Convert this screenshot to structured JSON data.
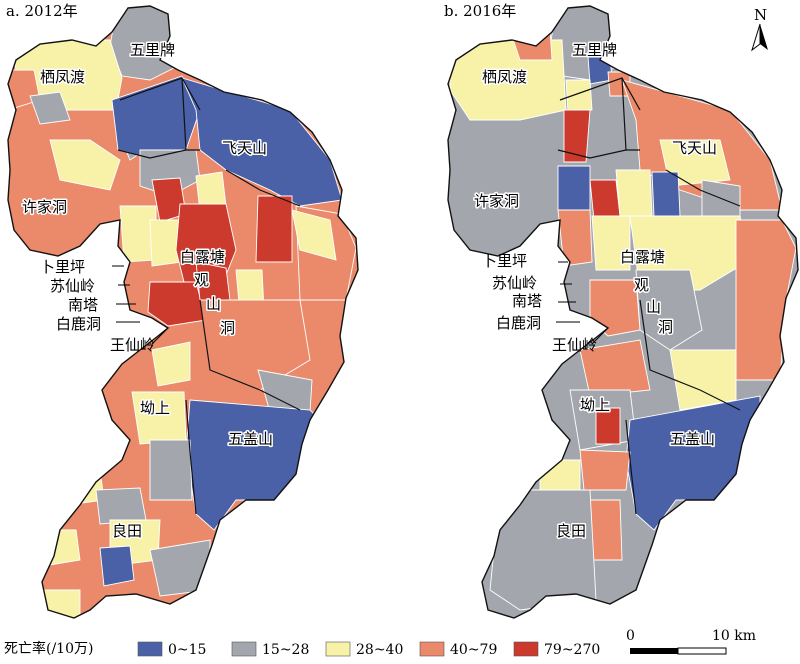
{
  "colors": {
    "class_0": "#4a61a8",
    "class_1": "#a3a7ad",
    "class_2": "#f7f2a8",
    "class_3": "#ea8a6a",
    "class_4": "#cb3a2c",
    "outline": "#111111",
    "background": "#ffffff"
  },
  "panels": [
    {
      "title": "a. 2012年",
      "labels": {
        "wulipai": "五里牌",
        "qifengdu": "栖凤渡",
        "feitianshan": "飞天山",
        "xujiadong": "许家洞",
        "bailutang": "白露塘",
        "bulieping": "卜里坪",
        "suxianling": "苏仙岭",
        "nanta": "南塔",
        "bailudong": "白鹿洞",
        "wangxianling": "王仙岭",
        "guanshandong_1": "观",
        "guanshandong_2": "山",
        "guanshandong_3": "洞",
        "aoshang": "坳上",
        "wugaishan": "五盖山",
        "liangtian": "良田"
      }
    },
    {
      "title": "b. 2016年",
      "labels": {
        "wulipai": "五里牌",
        "qifengdu": "栖凤渡",
        "feitianshan": "飞天山",
        "xujiadong": "许家洞",
        "bailutang": "白露塘",
        "bulieping": "卜里坪",
        "suxianling": "苏仙岭",
        "nanta": "南塔",
        "bailudong": "白鹿洞",
        "wangxianling": "王仙岭",
        "guanshandong_1": "观",
        "guanshandong_2": "山",
        "guanshandong_3": "洞",
        "aoshang": "坳上",
        "wugaishan": "五盖山",
        "liangtian": "良田"
      }
    }
  ],
  "legend": {
    "title": "死亡率(/10万)",
    "classes": [
      {
        "label": "0~15",
        "color_key": "class_0"
      },
      {
        "label": "15~28",
        "color_key": "class_1"
      },
      {
        "label": "28~40",
        "color_key": "class_2"
      },
      {
        "label": "40~79",
        "color_key": "class_3"
      },
      {
        "label": "79~270",
        "color_key": "class_4"
      }
    ]
  },
  "scale_bar": {
    "start": "0",
    "end": "10 km"
  },
  "north_arrow": {
    "label": "N",
    "icon": "north-arrow-icon"
  }
}
